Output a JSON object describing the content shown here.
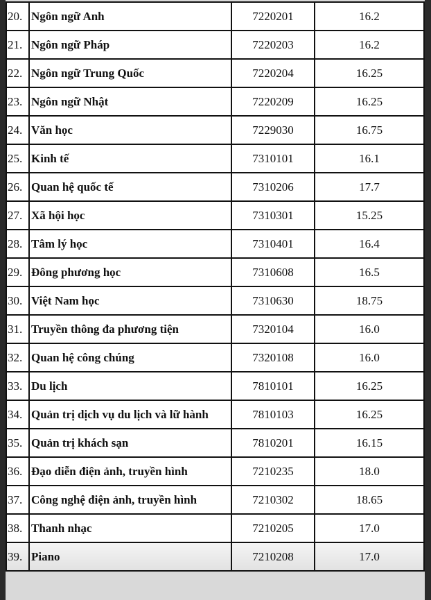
{
  "rows": [
    {
      "no": "20.",
      "name": "Ngôn ngữ Anh",
      "code": "7220201",
      "score": "16.2"
    },
    {
      "no": "21.",
      "name": "Ngôn ngữ Pháp",
      "code": "7220203",
      "score": "16.2"
    },
    {
      "no": "22.",
      "name": "Ngôn ngữ Trung Quốc",
      "code": "7220204",
      "score": "16.25"
    },
    {
      "no": "23.",
      "name": "Ngôn ngữ Nhật",
      "code": "7220209",
      "score": "16.25"
    },
    {
      "no": "24.",
      "name": "Văn học",
      "code": "7229030",
      "score": "16.75"
    },
    {
      "no": "25.",
      "name": "Kinh tế",
      "code": "7310101",
      "score": "16.1"
    },
    {
      "no": "26.",
      "name": "Quan hệ quốc tế",
      "code": "7310206",
      "score": "17.7"
    },
    {
      "no": "27.",
      "name": "Xã hội học",
      "code": "7310301",
      "score": "15.25"
    },
    {
      "no": "28.",
      "name": "Tâm lý học",
      "code": "7310401",
      "score": "16.4"
    },
    {
      "no": "29.",
      "name": "Đông phương học",
      "code": "7310608",
      "score": "16.5"
    },
    {
      "no": "30.",
      "name": "Việt Nam học",
      "code": "7310630",
      "score": "18.75"
    },
    {
      "no": "31.",
      "name": "Truyền thông đa phương tiện",
      "code": "7320104",
      "score": "16.0"
    },
    {
      "no": "32.",
      "name": "Quan hệ công chúng",
      "code": "7320108",
      "score": "16.0"
    },
    {
      "no": "33.",
      "name": "Du lịch",
      "code": "7810101",
      "score": "16.25"
    },
    {
      "no": "34.",
      "name": "Quản trị dịch vụ du lịch và lữ hành",
      "code": "7810103",
      "score": "16.25"
    },
    {
      "no": "35.",
      "name": "Quản trị khách sạn",
      "code": "7810201",
      "score": "16.15"
    },
    {
      "no": "36.",
      "name": "Đạo diễn điện ảnh, truyền hình",
      "code": "7210235",
      "score": "18.0"
    },
    {
      "no": "37.",
      "name": "Công nghệ điện ảnh, truyền hình",
      "code": "7210302",
      "score": "18.65"
    },
    {
      "no": "38.",
      "name": "Thanh nhạc",
      "code": "7210205",
      "score": "17.0"
    },
    {
      "no": "39.",
      "name": "Piano",
      "code": "7210208",
      "score": "17.0"
    }
  ]
}
